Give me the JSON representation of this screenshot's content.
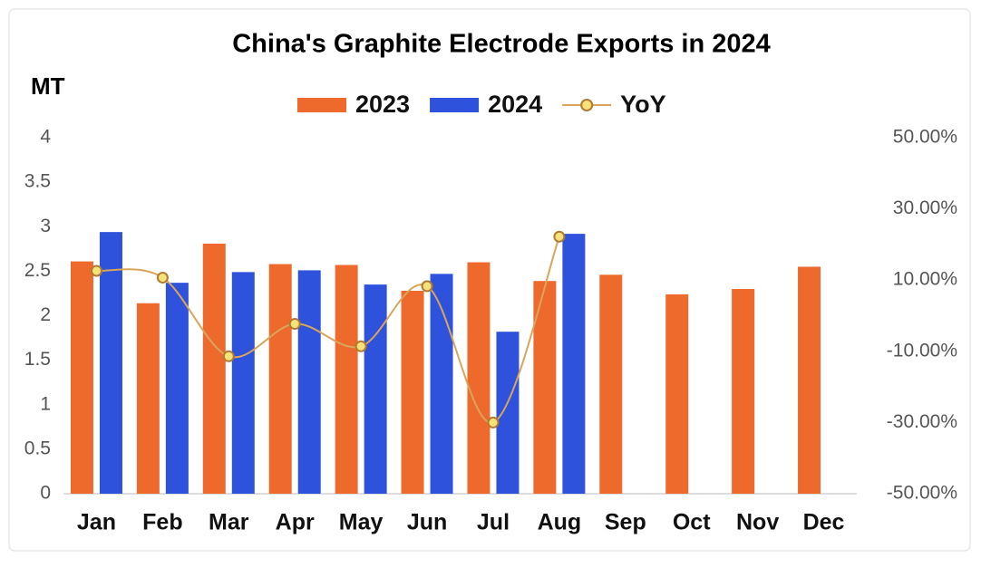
{
  "chart_data": {
    "type": "bar_line",
    "title": "China's Graphite Electrode Exports in 2024",
    "y_label": "MT",
    "categories": [
      "Jan",
      "Feb",
      "Mar",
      "Apr",
      "May",
      "Jun",
      "Jul",
      "Aug",
      "Sep",
      "Oct",
      "Nov",
      "Dec"
    ],
    "series": [
      {
        "name": "2023",
        "type": "bar",
        "color": "#ee6a2c",
        "values": [
          2.61,
          2.14,
          2.81,
          2.58,
          2.57,
          2.28,
          2.6,
          2.39,
          2.46,
          2.24,
          2.3,
          2.55
        ]
      },
      {
        "name": "2024",
        "type": "bar",
        "color": "#2f52dc",
        "values": [
          2.94,
          2.37,
          2.49,
          2.51,
          2.35,
          2.47,
          1.82,
          2.92,
          null,
          null,
          null,
          null
        ]
      },
      {
        "name": "YoY",
        "type": "line",
        "axis": "y2",
        "color": "#d9a55a",
        "values": [
          12.6,
          10.7,
          -11.4,
          -2.3,
          -8.6,
          8.3,
          -30.0,
          22.2,
          null,
          null,
          null,
          null
        ]
      }
    ],
    "ylim": [
      0,
      4
    ],
    "yticks": [
      0,
      0.5,
      1,
      1.5,
      2,
      2.5,
      3,
      3.5,
      4
    ],
    "y2lim": [
      -50,
      50
    ],
    "y2ticks": [
      {
        "value": -50,
        "label": "-50.00%"
      },
      {
        "value": -30,
        "label": "-30.00%"
      },
      {
        "value": -10,
        "label": "-10.00%"
      },
      {
        "value": 10,
        "label": "10.00%"
      },
      {
        "value": 30,
        "label": "30.00%"
      },
      {
        "value": 50,
        "label": "50.00%"
      }
    ],
    "grid": false
  }
}
